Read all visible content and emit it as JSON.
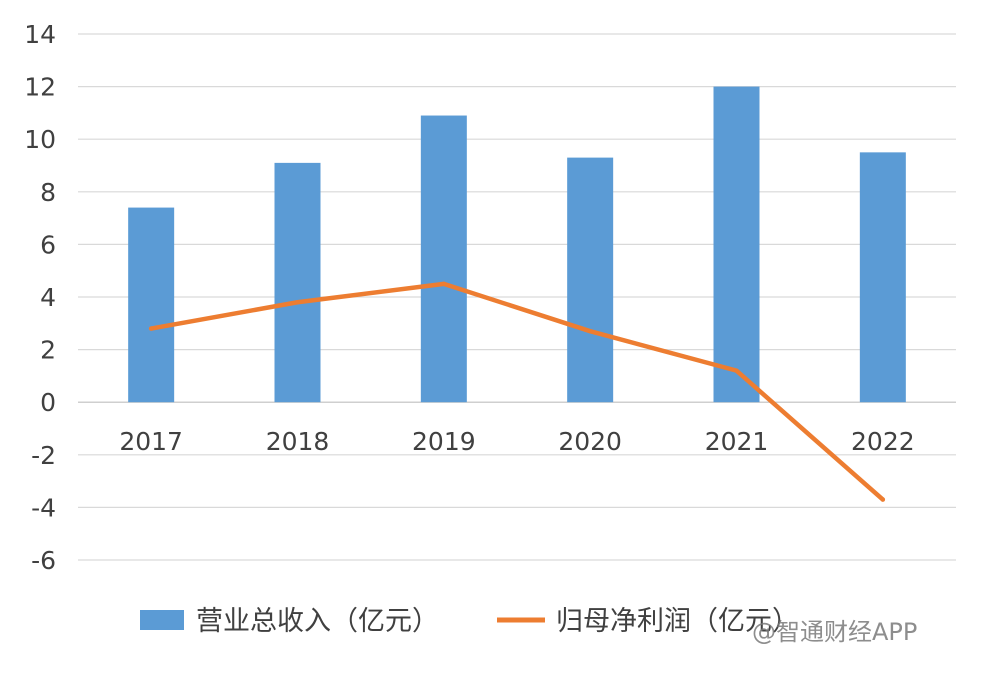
{
  "chart_data": {
    "type": "bar",
    "categories": [
      "2017",
      "2018",
      "2019",
      "2020",
      "2021",
      "2022"
    ],
    "series": [
      {
        "name": "营业总收入（亿元）",
        "type": "bar",
        "color": "#5b9bd5",
        "values": [
          7.4,
          9.1,
          10.9,
          9.3,
          12.0,
          9.5
        ]
      },
      {
        "name": "归母净利润（亿元）",
        "type": "line",
        "color": "#ed7d31",
        "values": [
          2.8,
          3.8,
          4.5,
          2.7,
          1.2,
          -3.7
        ]
      }
    ],
    "yticks": [
      "14",
      "12",
      "10",
      "8",
      "6",
      "4",
      "2",
      "0",
      "-2",
      "-4",
      "-6"
    ],
    "ylim": [
      -6,
      14
    ],
    "grid": true,
    "legend_position": "bottom"
  },
  "watermark": "@智通财经APP"
}
